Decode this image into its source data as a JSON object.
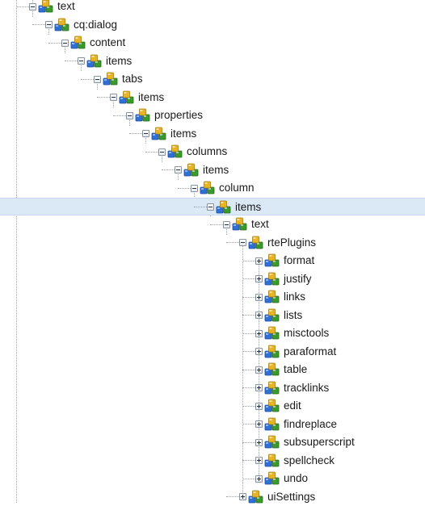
{
  "tree": {
    "nodes": [
      {
        "label": "text",
        "level": 0,
        "state": "expanded",
        "icon": "node-icon"
      },
      {
        "label": "cq:dialog",
        "level": 1,
        "state": "expanded",
        "icon": "node-icon"
      },
      {
        "label": "content",
        "level": 2,
        "state": "expanded",
        "icon": "node-icon"
      },
      {
        "label": "items",
        "level": 3,
        "state": "expanded",
        "icon": "node-icon"
      },
      {
        "label": "tabs",
        "level": 4,
        "state": "expanded",
        "icon": "node-icon"
      },
      {
        "label": "items",
        "level": 5,
        "state": "expanded",
        "icon": "node-icon"
      },
      {
        "label": "properties",
        "level": 6,
        "state": "expanded",
        "icon": "node-icon"
      },
      {
        "label": "items",
        "level": 7,
        "state": "expanded",
        "icon": "node-icon"
      },
      {
        "label": "columns",
        "level": 8,
        "state": "expanded",
        "icon": "node-icon"
      },
      {
        "label": "items",
        "level": 9,
        "state": "expanded",
        "icon": "node-icon"
      },
      {
        "label": "column",
        "level": 10,
        "state": "expanded",
        "icon": "node-icon"
      },
      {
        "label": "items",
        "level": 11,
        "state": "expanded",
        "icon": "node-icon",
        "selected": true
      },
      {
        "label": "text",
        "level": 12,
        "state": "expanded",
        "icon": "node-icon"
      },
      {
        "label": "rtePlugins",
        "level": 13,
        "state": "expanded",
        "icon": "node-icon"
      },
      {
        "label": "format",
        "level": 14,
        "state": "collapsed",
        "icon": "node-icon"
      },
      {
        "label": "justify",
        "level": 14,
        "state": "collapsed",
        "icon": "node-icon"
      },
      {
        "label": "links",
        "level": 14,
        "state": "collapsed",
        "icon": "node-icon"
      },
      {
        "label": "lists",
        "level": 14,
        "state": "collapsed",
        "icon": "node-icon"
      },
      {
        "label": "misctools",
        "level": 14,
        "state": "collapsed",
        "icon": "node-icon"
      },
      {
        "label": "paraformat",
        "level": 14,
        "state": "collapsed",
        "icon": "node-icon"
      },
      {
        "label": "table",
        "level": 14,
        "state": "collapsed",
        "icon": "node-icon"
      },
      {
        "label": "tracklinks",
        "level": 14,
        "state": "collapsed",
        "icon": "node-icon"
      },
      {
        "label": "edit",
        "level": 14,
        "state": "collapsed",
        "icon": "node-icon"
      },
      {
        "label": "findreplace",
        "level": 14,
        "state": "collapsed",
        "icon": "node-icon"
      },
      {
        "label": "subsuperscript",
        "level": 14,
        "state": "collapsed",
        "icon": "node-icon"
      },
      {
        "label": "spellcheck",
        "level": 14,
        "state": "collapsed",
        "icon": "node-icon"
      },
      {
        "label": "undo",
        "level": 14,
        "state": "collapsed",
        "icon": "node-icon"
      },
      {
        "label": "uiSettings",
        "level": 13,
        "state": "collapsed",
        "icon": "node-icon"
      }
    ]
  },
  "colors": {
    "selected_row": "#dbe9f7",
    "label_text": "#1a1a1a",
    "connector_lines": "#9aa0a6",
    "icon_blue": "#2f6fd6",
    "icon_green": "#3a9a2c",
    "icon_yellow": "#e7b423"
  }
}
